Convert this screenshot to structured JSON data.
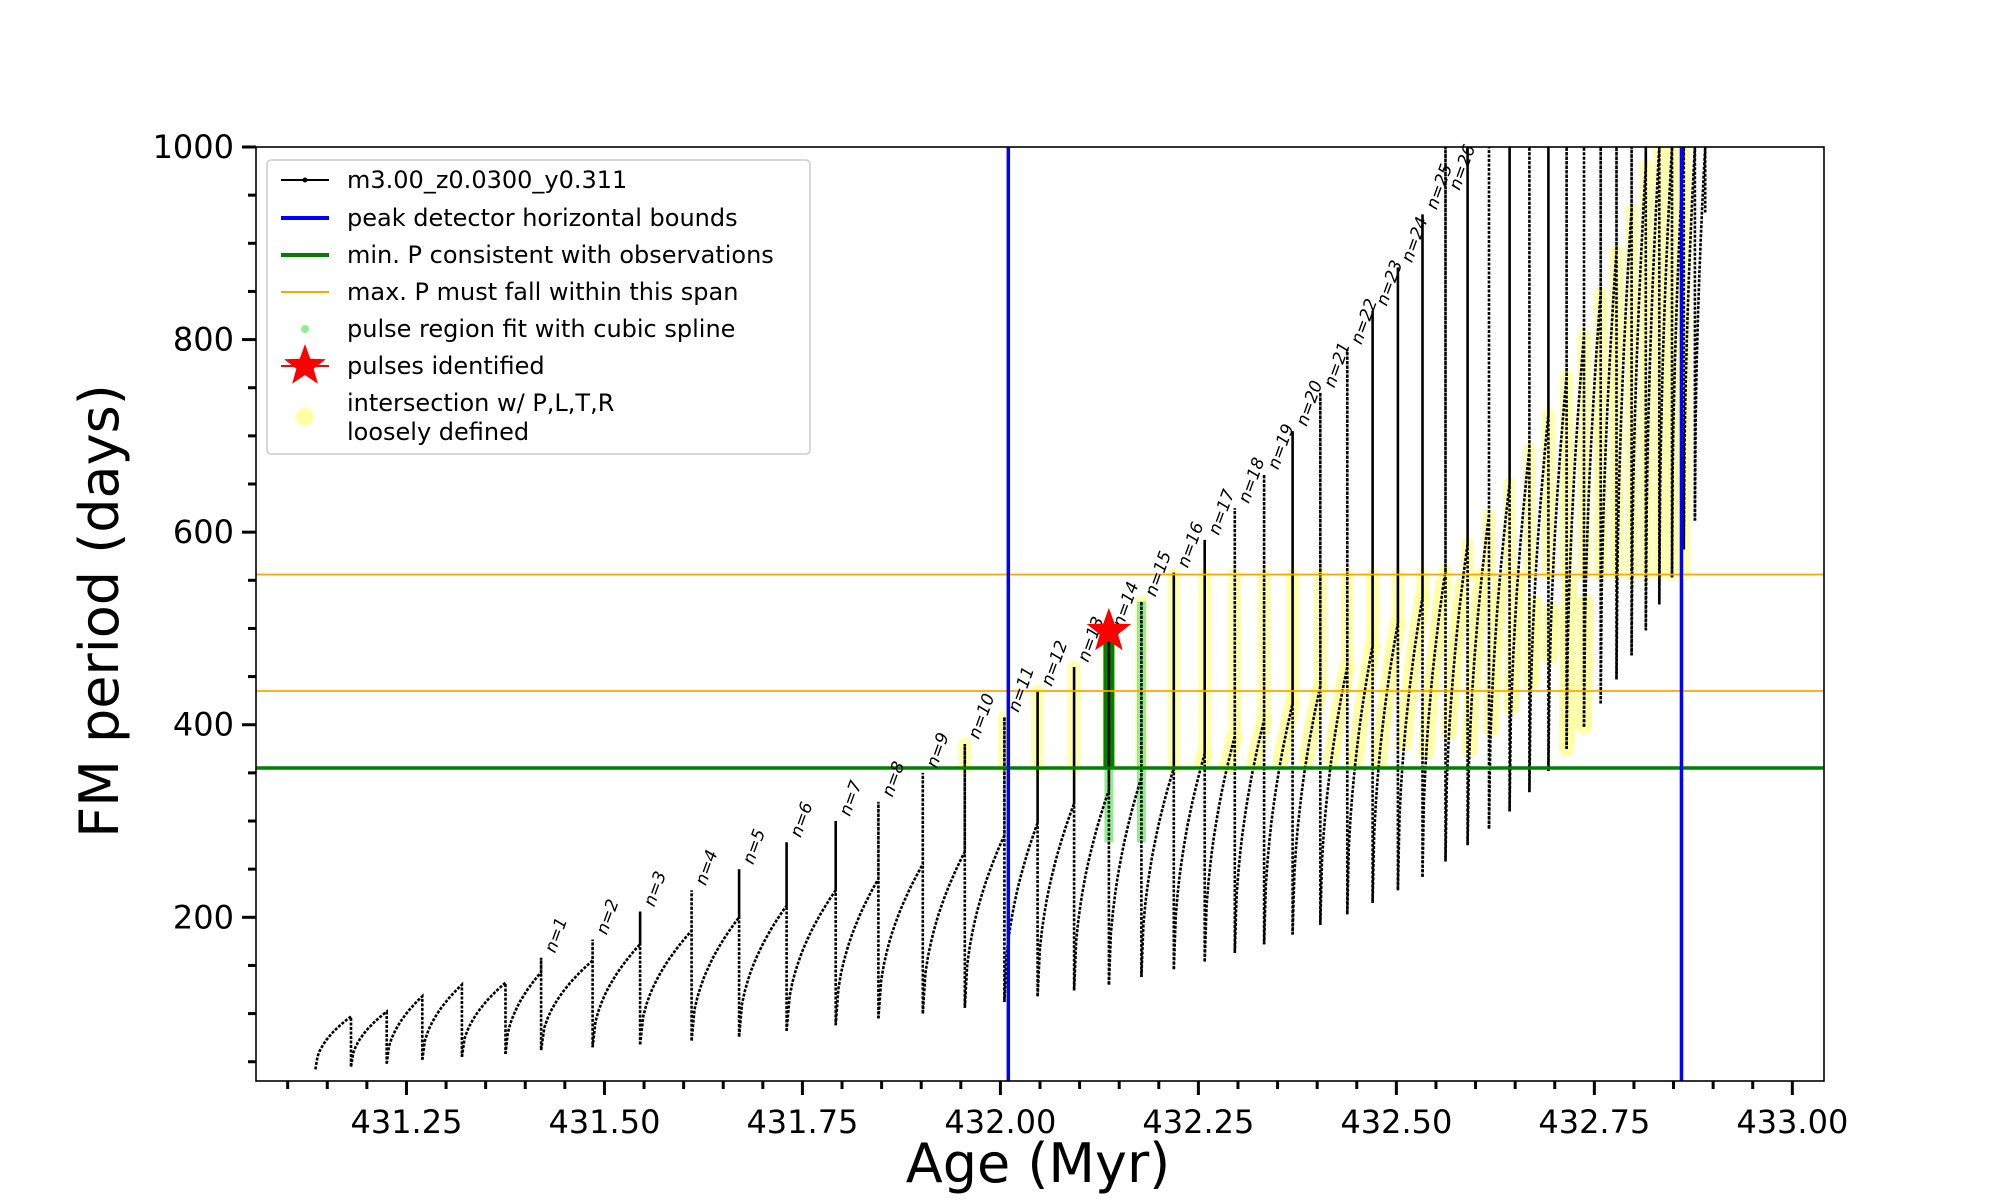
{
  "chart_data": {
    "type": "line",
    "xlabel": "Age (Myr)",
    "ylabel": "FM period (days)",
    "xlim": [
      431.06,
      433.04
    ],
    "ylim": [
      30,
      1000
    ],
    "x_ticks": [
      431.25,
      431.5,
      431.75,
      432.0,
      432.25,
      432.5,
      432.75,
      433.0
    ],
    "x_tick_labels": [
      "431.25",
      "431.50",
      "431.75",
      "432.00",
      "432.25",
      "432.50",
      "432.75",
      "433.00"
    ],
    "y_ticks": [
      200,
      400,
      600,
      800,
      1000
    ],
    "y_tick_labels": [
      "200",
      "400",
      "600",
      "800",
      "1000"
    ],
    "legend": {
      "placement": "top-left",
      "entries": [
        {
          "label": "m3.00_z0.0300_y0.311",
          "color": "#000000",
          "style": "line-marker"
        },
        {
          "label": "peak detector horizontal bounds",
          "color": "#0000ff",
          "style": "line"
        },
        {
          "label": "min. P consistent with observations",
          "color": "#008000",
          "style": "line"
        },
        {
          "label": "max. P must fall within this span",
          "color": "#ffa500",
          "style": "thin-line"
        },
        {
          "label": "pulse region fit with cubic spline",
          "color": "#90ee90",
          "style": "dot"
        },
        {
          "label": "pulses identified",
          "color": "#ff0000",
          "style": "star"
        },
        {
          "label": "intersection w/ P,L,T,R",
          "label2": "loosely defined",
          "color": "#ffff99",
          "style": "circle"
        }
      ]
    },
    "vertical_lines": {
      "color": "#0000ff",
      "x": [
        432.01,
        432.86
      ]
    },
    "min_period_line": {
      "color": "#008000",
      "y": 355
    },
    "max_period_span": {
      "color": "#ffa500",
      "y": [
        435,
        556
      ]
    },
    "pulses_identified": [
      {
        "x": 432.137,
        "y": 497,
        "color": "#ff0000"
      }
    ],
    "series": [
      {
        "name": "m3.00_z0.0300_y0.311",
        "color": "#000000",
        "pulses": [
          {
            "n": 0,
            "x_start": 431.135,
            "x_peak": 431.18,
            "y_min": 42,
            "y_peak": 97,
            "spike_top": 97
          },
          {
            "n": 0,
            "x_start": 431.18,
            "x_peak": 431.225,
            "y_min": 45,
            "y_peak": 102,
            "spike_top": 102
          },
          {
            "n": 0,
            "x_start": 431.225,
            "x_peak": 431.27,
            "y_min": 48,
            "y_peak": 118,
            "spike_top": 118
          },
          {
            "n": 0,
            "x_start": 431.27,
            "x_peak": 431.32,
            "y_min": 52,
            "y_peak": 130,
            "spike_top": 130
          },
          {
            "n": 0,
            "x_start": 431.32,
            "x_peak": 431.375,
            "y_min": 55,
            "y_peak": 132,
            "spike_top": 132
          },
          {
            "n": 1,
            "x_start": 431.375,
            "x_peak": 431.42,
            "y_min": 58,
            "y_peak": 143,
            "spike_top": 158
          },
          {
            "n": 2,
            "x_start": 431.42,
            "x_peak": 431.485,
            "y_min": 62,
            "y_peak": 155,
            "spike_top": 177
          },
          {
            "n": 3,
            "x_start": 431.485,
            "x_peak": 431.545,
            "y_min": 65,
            "y_peak": 172,
            "spike_top": 206
          },
          {
            "n": 4,
            "x_start": 431.545,
            "x_peak": 431.61,
            "y_min": 68,
            "y_peak": 186,
            "spike_top": 228
          },
          {
            "n": 5,
            "x_start": 431.61,
            "x_peak": 431.67,
            "y_min": 72,
            "y_peak": 200,
            "spike_top": 250
          },
          {
            "n": 6,
            "x_start": 431.67,
            "x_peak": 431.73,
            "y_min": 76,
            "y_peak": 212,
            "spike_top": 278
          },
          {
            "n": 7,
            "x_start": 431.73,
            "x_peak": 431.792,
            "y_min": 82,
            "y_peak": 228,
            "spike_top": 300
          },
          {
            "n": 8,
            "x_start": 431.792,
            "x_peak": 431.846,
            "y_min": 88,
            "y_peak": 240,
            "spike_top": 320
          },
          {
            "n": 9,
            "x_start": 431.846,
            "x_peak": 431.902,
            "y_min": 95,
            "y_peak": 255,
            "spike_top": 350
          },
          {
            "n": 10,
            "x_start": 431.902,
            "x_peak": 431.955,
            "y_min": 100,
            "y_peak": 268,
            "spike_top": 380
          },
          {
            "n": 11,
            "x_start": 431.955,
            "x_peak": 432.005,
            "y_min": 106,
            "y_peak": 285,
            "spike_top": 408
          },
          {
            "n": 12,
            "x_start": 432.005,
            "x_peak": 432.047,
            "y_min": 112,
            "y_peak": 298,
            "spike_top": 435
          },
          {
            "n": 13,
            "x_start": 432.047,
            "x_peak": 432.093,
            "y_min": 118,
            "y_peak": 318,
            "spike_top": 460
          },
          {
            "n": 14,
            "x_start": 432.093,
            "x_peak": 432.137,
            "y_min": 124,
            "y_peak": 332,
            "spike_top": 496
          },
          {
            "n": 15,
            "x_start": 432.137,
            "x_peak": 432.178,
            "y_min": 130,
            "y_peak": 345,
            "spike_top": 528
          },
          {
            "n": 16,
            "x_start": 432.178,
            "x_peak": 432.219,
            "y_min": 138,
            "y_peak": 355,
            "spike_top": 558
          },
          {
            "n": 17,
            "x_start": 432.219,
            "x_peak": 432.258,
            "y_min": 146,
            "y_peak": 370,
            "spike_top": 592
          },
          {
            "n": 18,
            "x_start": 432.258,
            "x_peak": 432.296,
            "y_min": 154,
            "y_peak": 388,
            "spike_top": 625
          },
          {
            "n": 19,
            "x_start": 432.296,
            "x_peak": 432.333,
            "y_min": 163,
            "y_peak": 405,
            "spike_top": 660
          },
          {
            "n": 20,
            "x_start": 432.333,
            "x_peak": 432.369,
            "y_min": 172,
            "y_peak": 422,
            "spike_top": 705
          },
          {
            "n": 21,
            "x_start": 432.369,
            "x_peak": 432.404,
            "y_min": 182,
            "y_peak": 440,
            "spike_top": 745
          },
          {
            "n": 22,
            "x_start": 432.404,
            "x_peak": 432.438,
            "y_min": 192,
            "y_peak": 460,
            "spike_top": 790
          },
          {
            "n": 23,
            "x_start": 432.438,
            "x_peak": 432.47,
            "y_min": 203,
            "y_peak": 482,
            "spike_top": 830
          },
          {
            "n": 24,
            "x_start": 432.47,
            "x_peak": 432.502,
            "y_min": 215,
            "y_peak": 506,
            "spike_top": 875
          },
          {
            "n": 25,
            "x_start": 432.502,
            "x_peak": 432.533,
            "y_min": 228,
            "y_peak": 532,
            "spike_top": 930
          },
          {
            "n": 26,
            "x_start": 432.533,
            "x_peak": 432.562,
            "y_min": 242,
            "y_peak": 560,
            "spike_top": 1000
          },
          {
            "n": 0,
            "x_start": 432.562,
            "x_peak": 432.59,
            "y_min": 258,
            "y_peak": 588,
            "spike_top": 1000
          },
          {
            "n": 0,
            "x_start": 432.59,
            "x_peak": 432.617,
            "y_min": 275,
            "y_peak": 618,
            "spike_top": 1000
          },
          {
            "n": 0,
            "x_start": 432.617,
            "x_peak": 432.643,
            "y_min": 292,
            "y_peak": 650,
            "spike_top": 1000
          },
          {
            "n": 0,
            "x_start": 432.643,
            "x_peak": 432.668,
            "y_min": 310,
            "y_peak": 686,
            "spike_top": 1000
          },
          {
            "n": 0,
            "x_start": 432.668,
            "x_peak": 432.692,
            "y_min": 330,
            "y_peak": 722,
            "spike_top": 1000
          },
          {
            "n": 0,
            "x_start": 432.692,
            "x_peak": 432.715,
            "y_min": 352,
            "y_peak": 762,
            "spike_top": 1000
          },
          {
            "n": 0,
            "x_start": 432.715,
            "x_peak": 432.737,
            "y_min": 375,
            "y_peak": 805,
            "spike_top": 1000
          },
          {
            "n": 0,
            "x_start": 432.737,
            "x_peak": 432.758,
            "y_min": 398,
            "y_peak": 848,
            "spike_top": 1000
          },
          {
            "n": 0,
            "x_start": 432.758,
            "x_peak": 432.778,
            "y_min": 422,
            "y_peak": 892,
            "spike_top": 1000
          },
          {
            "n": 0,
            "x_start": 432.778,
            "x_peak": 432.797,
            "y_min": 447,
            "y_peak": 935,
            "spike_top": 1000
          },
          {
            "n": 0,
            "x_start": 432.797,
            "x_peak": 432.815,
            "y_min": 472,
            "y_peak": 980,
            "spike_top": 1000
          },
          {
            "n": 0,
            "x_start": 432.815,
            "x_peak": 432.832,
            "y_min": 498,
            "y_peak": 1000,
            "spike_top": 1000
          },
          {
            "n": 0,
            "x_start": 432.832,
            "x_peak": 432.848,
            "y_min": 525,
            "y_peak": 1000,
            "spike_top": 1000
          },
          {
            "n": 0,
            "x_start": 432.848,
            "x_peak": 432.863,
            "y_min": 553,
            "y_peak": 1000,
            "spike_top": 1000
          },
          {
            "n": 0,
            "x_start": 432.863,
            "x_peak": 432.877,
            "y_min": 582,
            "y_peak": 1000,
            "spike_top": 1000
          },
          {
            "n": 0,
            "x_start": 432.877,
            "x_peak": 432.89,
            "y_min": 612,
            "y_peak": 1000,
            "spike_top": 1000
          }
        ]
      },
      {
        "name": "pulse region fit with cubic spline",
        "color": "#90ee90",
        "segments": [
          {
            "x": 432.137,
            "y": [
              278,
              496
            ]
          },
          {
            "x": 432.178,
            "y": [
              278,
              528
            ]
          }
        ]
      },
      {
        "name": "min. P consistent with observations",
        "color": "#008000",
        "segments": [
          {
            "x": 432.137,
            "y": [
              355,
              496
            ]
          }
        ]
      }
    ]
  }
}
